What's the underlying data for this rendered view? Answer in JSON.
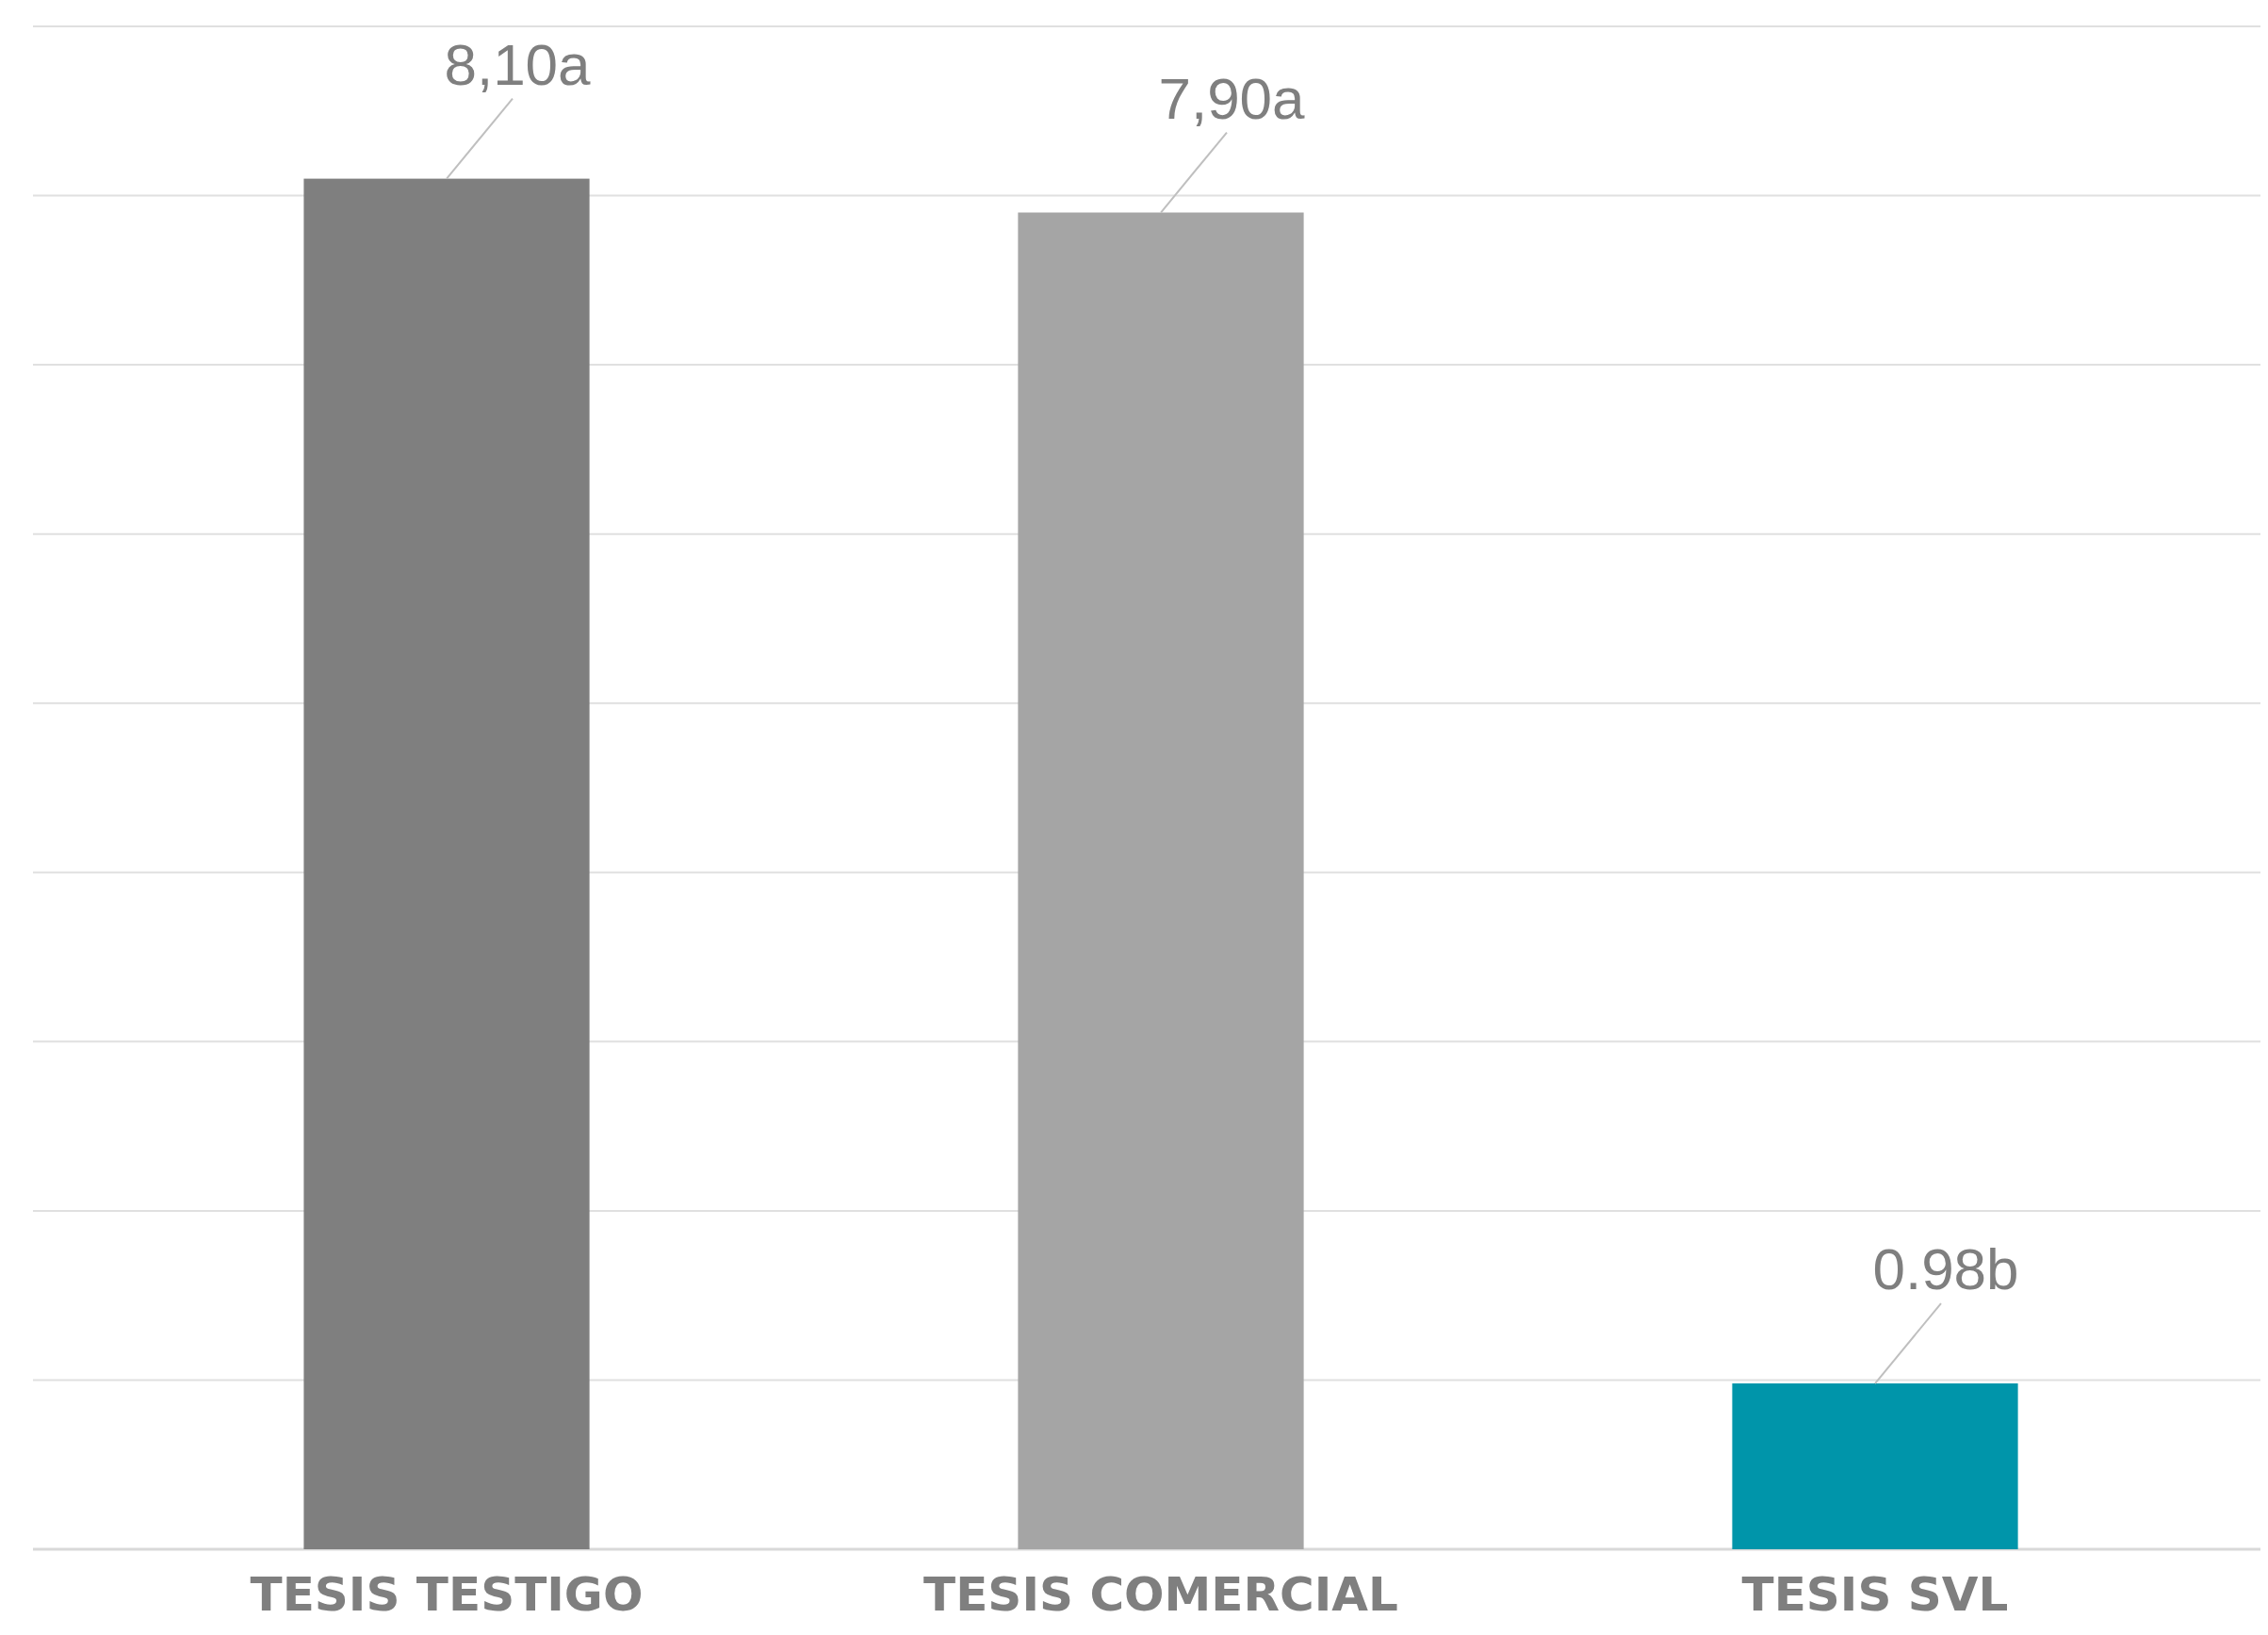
{
  "chart_data": {
    "type": "bar",
    "categories": [
      "TESIS TESTIGO",
      "TESIS COMERCIAL",
      "TESIS SVL"
    ],
    "values": [
      8.1,
      7.9,
      0.98
    ],
    "colors": [
      "#7f7f7f",
      "#a5a5a5",
      "#0095aa"
    ],
    "value_labels": [
      "8,10a",
      "7,90a",
      "0.98b"
    ],
    "ylim": [
      0,
      9
    ],
    "yticks": [
      {
        "value": 0,
        "label": null
      },
      {
        "value": 1,
        "label": null
      },
      {
        "value": 2,
        "label": null
      },
      {
        "value": 3,
        "label": null
      },
      {
        "value": 4,
        "label": null
      },
      {
        "value": 5,
        "label": null
      },
      {
        "value": 6,
        "label": null
      },
      {
        "value": 7,
        "label": null
      },
      {
        "value": 8,
        "label": null
      },
      {
        "value": 9,
        "label": null
      }
    ],
    "tick_labels": "x",
    "grid": "y"
  }
}
